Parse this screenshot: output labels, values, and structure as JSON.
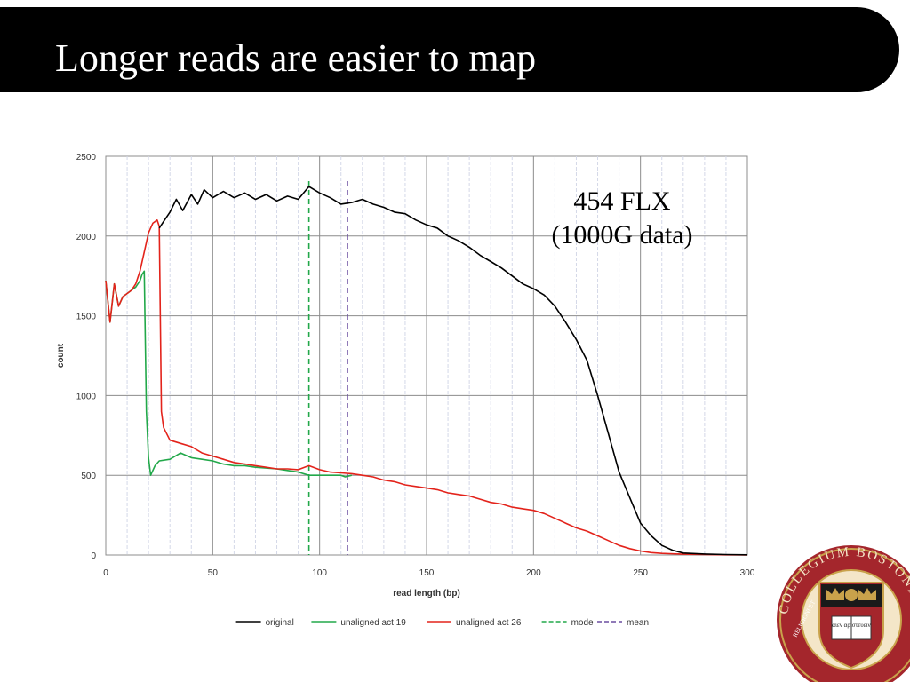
{
  "slide": {
    "title": "Longer reads are easier to map",
    "annotation_line1": "454 FLX",
    "annotation_line2": "(1000G data)"
  },
  "seal": {
    "text": "COLLEGIUM BOSTONIENSE",
    "motto_left": "RELIGIONI ET",
    "motto_book": "αἰὲν ἀριστεύειν",
    "colors": {
      "ring": "#a4262c",
      "gold": "#c9a24b",
      "cream": "#f4e6c8"
    }
  },
  "chart_data": {
    "type": "line",
    "title": "",
    "xlabel": "read length (bp)",
    "ylabel": "count",
    "xlim": [
      0,
      300
    ],
    "ylim": [
      0,
      2500
    ],
    "xticks": [
      0,
      50,
      100,
      150,
      200,
      250,
      300
    ],
    "yticks": [
      0,
      500,
      1000,
      1500,
      2000,
      2500
    ],
    "minor_xticks_every": 10,
    "grid": true,
    "legend_position": "bottom",
    "series": [
      {
        "name": "original",
        "color": "#000000",
        "style": "solid",
        "points": [
          [
            25,
            2050
          ],
          [
            27,
            2090
          ],
          [
            30,
            2150
          ],
          [
            33,
            2230
          ],
          [
            36,
            2160
          ],
          [
            40,
            2260
          ],
          [
            43,
            2200
          ],
          [
            46,
            2290
          ],
          [
            50,
            2240
          ],
          [
            55,
            2280
          ],
          [
            60,
            2240
          ],
          [
            65,
            2270
          ],
          [
            70,
            2230
          ],
          [
            75,
            2260
          ],
          [
            80,
            2220
          ],
          [
            85,
            2250
          ],
          [
            90,
            2230
          ],
          [
            95,
            2310
          ],
          [
            100,
            2270
          ],
          [
            105,
            2240
          ],
          [
            110,
            2200
          ],
          [
            115,
            2210
          ],
          [
            120,
            2230
          ],
          [
            125,
            2200
          ],
          [
            130,
            2180
          ],
          [
            135,
            2150
          ],
          [
            140,
            2140
          ],
          [
            145,
            2100
          ],
          [
            150,
            2070
          ],
          [
            155,
            2050
          ],
          [
            160,
            2000
          ],
          [
            165,
            1970
          ],
          [
            170,
            1930
          ],
          [
            175,
            1880
          ],
          [
            180,
            1840
          ],
          [
            185,
            1800
          ],
          [
            190,
            1750
          ],
          [
            195,
            1700
          ],
          [
            200,
            1670
          ],
          [
            205,
            1630
          ],
          [
            210,
            1560
          ],
          [
            215,
            1460
          ],
          [
            220,
            1350
          ],
          [
            225,
            1220
          ],
          [
            230,
            1000
          ],
          [
            235,
            760
          ],
          [
            240,
            520
          ],
          [
            245,
            360
          ],
          [
            250,
            200
          ],
          [
            255,
            120
          ],
          [
            260,
            60
          ],
          [
            265,
            30
          ],
          [
            270,
            12
          ],
          [
            280,
            6
          ],
          [
            290,
            3
          ],
          [
            300,
            1
          ]
        ]
      },
      {
        "name": "unaligned act 19",
        "color": "#22a84a",
        "style": "solid",
        "points": [
          [
            0,
            1720
          ],
          [
            2,
            1460
          ],
          [
            4,
            1700
          ],
          [
            6,
            1560
          ],
          [
            8,
            1620
          ],
          [
            10,
            1640
          ],
          [
            12,
            1660
          ],
          [
            14,
            1680
          ],
          [
            16,
            1720
          ],
          [
            17,
            1760
          ],
          [
            18,
            1780
          ],
          [
            19,
            900
          ],
          [
            20,
            610
          ],
          [
            21,
            500
          ],
          [
            23,
            560
          ],
          [
            25,
            590
          ],
          [
            30,
            600
          ],
          [
            35,
            640
          ],
          [
            40,
            610
          ],
          [
            45,
            600
          ],
          [
            50,
            590
          ],
          [
            55,
            570
          ],
          [
            60,
            560
          ],
          [
            65,
            560
          ],
          [
            70,
            550
          ],
          [
            75,
            545
          ],
          [
            80,
            540
          ],
          [
            85,
            530
          ],
          [
            90,
            520
          ],
          [
            95,
            500
          ],
          [
            100,
            500
          ],
          [
            105,
            500
          ],
          [
            110,
            500
          ],
          [
            112,
            490
          ],
          [
            115,
            500
          ]
        ]
      },
      {
        "name": "unaligned act 26",
        "color": "#e3231b",
        "style": "solid",
        "points": [
          [
            0,
            1720
          ],
          [
            2,
            1460
          ],
          [
            4,
            1700
          ],
          [
            6,
            1560
          ],
          [
            8,
            1620
          ],
          [
            10,
            1640
          ],
          [
            12,
            1660
          ],
          [
            14,
            1700
          ],
          [
            16,
            1780
          ],
          [
            18,
            1900
          ],
          [
            20,
            2020
          ],
          [
            22,
            2080
          ],
          [
            24,
            2100
          ],
          [
            25,
            2060
          ],
          [
            26,
            900
          ],
          [
            27,
            800
          ],
          [
            30,
            720
          ],
          [
            35,
            700
          ],
          [
            40,
            680
          ],
          [
            45,
            640
          ],
          [
            50,
            620
          ],
          [
            55,
            600
          ],
          [
            60,
            580
          ],
          [
            65,
            570
          ],
          [
            70,
            560
          ],
          [
            75,
            550
          ],
          [
            80,
            540
          ],
          [
            85,
            540
          ],
          [
            90,
            535
          ],
          [
            95,
            560
          ],
          [
            100,
            535
          ],
          [
            105,
            520
          ],
          [
            110,
            515
          ],
          [
            115,
            510
          ],
          [
            120,
            500
          ],
          [
            125,
            490
          ],
          [
            130,
            470
          ],
          [
            135,
            460
          ],
          [
            140,
            440
          ],
          [
            145,
            430
          ],
          [
            150,
            420
          ],
          [
            155,
            410
          ],
          [
            160,
            390
          ],
          [
            165,
            380
          ],
          [
            170,
            370
          ],
          [
            175,
            350
          ],
          [
            180,
            330
          ],
          [
            185,
            320
          ],
          [
            190,
            300
          ],
          [
            195,
            290
          ],
          [
            200,
            280
          ],
          [
            205,
            260
          ],
          [
            210,
            230
          ],
          [
            215,
            200
          ],
          [
            220,
            170
          ],
          [
            225,
            150
          ],
          [
            230,
            120
          ],
          [
            235,
            90
          ],
          [
            240,
            60
          ],
          [
            245,
            40
          ],
          [
            250,
            25
          ],
          [
            255,
            15
          ],
          [
            260,
            10
          ],
          [
            270,
            5
          ],
          [
            280,
            3
          ],
          [
            290,
            1
          ],
          [
            300,
            0
          ]
        ]
      },
      {
        "name": "mode",
        "color": "#22a84a",
        "style": "dashed",
        "vline": 95
      },
      {
        "name": "mean",
        "color": "#6b4fa0",
        "style": "dashed",
        "vline": 113
      }
    ]
  }
}
